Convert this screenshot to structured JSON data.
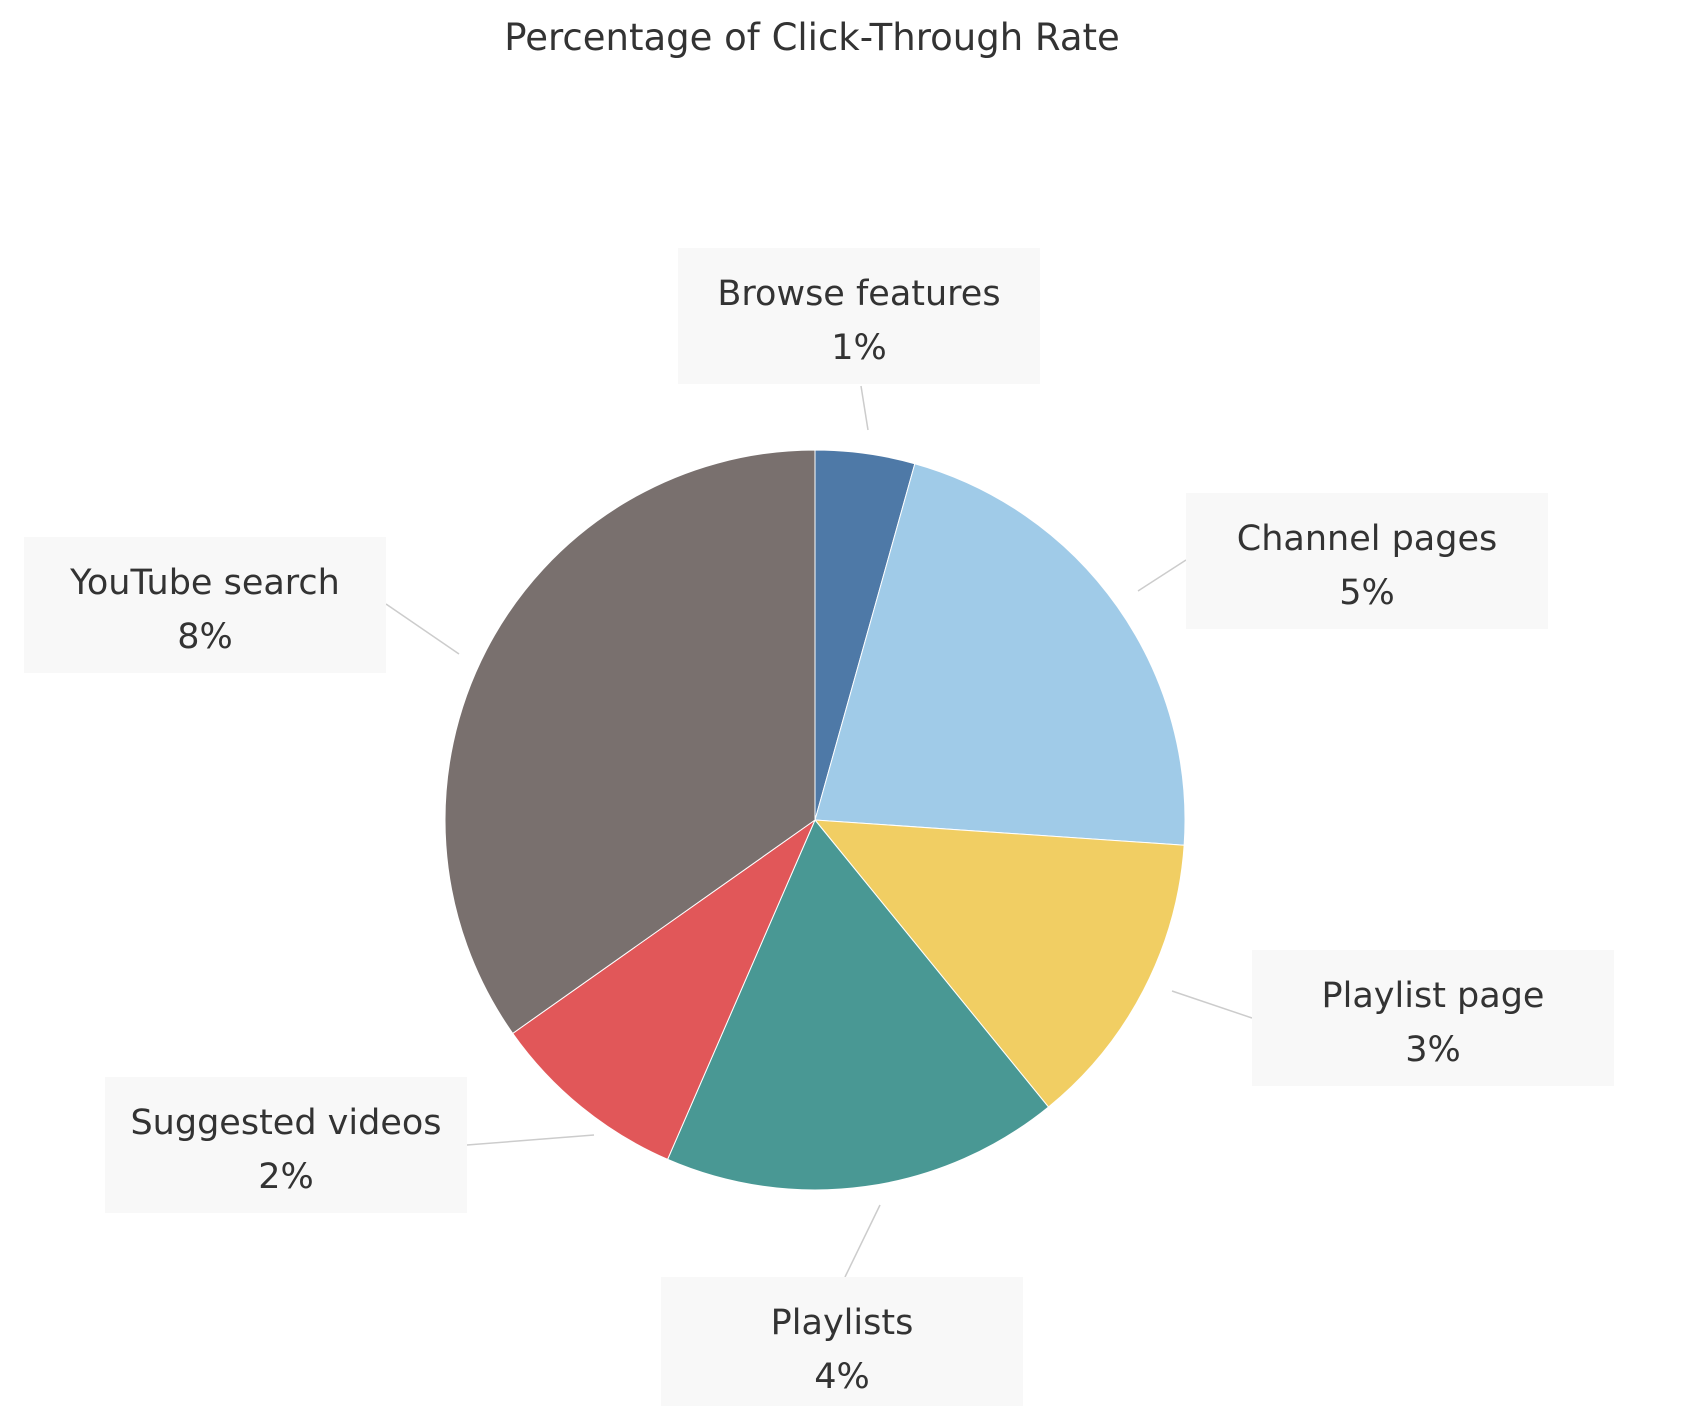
{
  "chart_data": {
    "type": "pie",
    "title": "Percentage of Click-Through Rate",
    "start_angle_deg": 0,
    "direction": "clockwise",
    "slices": [
      {
        "label": "Browse features",
        "value": 1,
        "value_label": "1%",
        "color": "#4e79a7"
      },
      {
        "label": "Channel pages",
        "value": 5,
        "value_label": "5%",
        "color": "#a0cbe8"
      },
      {
        "label": "Playlist page",
        "value": 3,
        "value_label": "3%",
        "color": "#f1ce63"
      },
      {
        "label": "Playlists",
        "value": 4,
        "value_label": "4%",
        "color": "#499894"
      },
      {
        "label": "Suggested videos",
        "value": 2,
        "value_label": "2%",
        "color": "#e15759"
      },
      {
        "label": "YouTube search",
        "value": 8,
        "value_label": "8%",
        "color": "#79706e"
      }
    ]
  }
}
